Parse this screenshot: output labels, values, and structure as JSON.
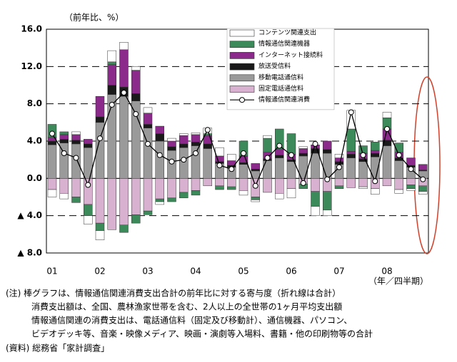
{
  "chart_data": {
    "type": "bar",
    "stacked": true,
    "y_label": "（前年比、%）",
    "x_label": "（年／四半期）",
    "categories": [
      "01",
      null,
      null,
      null,
      "02",
      null,
      null,
      null,
      "03",
      null,
      null,
      null,
      "04",
      null,
      null,
      null,
      "05",
      null,
      null,
      null,
      "06",
      null,
      null,
      null,
      "07",
      null,
      null,
      null,
      "08",
      null,
      null,
      null
    ],
    "ylim": [
      -8,
      16
    ],
    "yticks": [
      {
        "value": 16,
        "label": "16.0"
      },
      {
        "value": 12,
        "label": "12.0"
      },
      {
        "value": 8,
        "label": "8.0"
      },
      {
        "value": 4,
        "label": "4.0"
      },
      {
        "value": 0,
        "label": "0.0"
      },
      {
        "value": -4,
        "label": "▲ 4.0"
      },
      {
        "value": -8,
        "label": "▲ 8.0"
      }
    ],
    "grid": true,
    "series": [
      {
        "name": "コンテンツ関連支出",
        "color": "#ffffff",
        "values": [
          -0.8,
          -0.6,
          0.3,
          -0.9,
          -1.0,
          1.2,
          0.8,
          0.4,
          0.6,
          -0.3,
          0.3,
          0.2,
          0.2,
          0.6,
          0.9,
          0.7,
          -0.5,
          -0.2,
          0.3,
          -0.6,
          -1.0,
          0.2,
          -1.0,
          -0.6,
          0.4,
          2.0,
          -0.2,
          -0.6,
          0.6,
          -0.4,
          -0.2,
          -0.3
        ]
      },
      {
        "name": "情報通信関連機器",
        "color": "#3c8a5a",
        "values": [
          1.4,
          0.3,
          -0.6,
          -1.2,
          -0.8,
          0.3,
          -0.8,
          -0.9,
          -0.4,
          -0.3,
          -0.4,
          -0.6,
          -0.5,
          0.2,
          -0.4,
          -0.3,
          1.6,
          -0.3,
          1.5,
          2.2,
          2.2,
          -0.5,
          -1.6,
          -2.0,
          -0.3,
          2.4,
          0.8,
          0.9,
          1.2,
          1.0,
          -0.4,
          -0.6
        ]
      },
      {
        "name": "インターネット接続料",
        "color": "#8b2a8b",
        "values": [
          0.4,
          0.5,
          0.6,
          0.5,
          2.2,
          2.2,
          4.0,
          2.5,
          1.2,
          0.8,
          0.6,
          0.9,
          0.8,
          0.9,
          0.6,
          0.5,
          0.7,
          0.6,
          0.7,
          0.6,
          0.6,
          0.5,
          0.4,
          0.9,
          0.4,
          0.3,
          0.6,
          0.3,
          1.2,
          0.6,
          0.8,
          0.6
        ]
      },
      {
        "name": "放送受信料",
        "color": "#1a1a1a",
        "values": [
          0.4,
          0.4,
          0.4,
          0.4,
          0.6,
          1.0,
          1.0,
          0.8,
          0.4,
          0.8,
          0.4,
          0.4,
          0.4,
          0.5,
          0.2,
          0.2,
          0.2,
          0.2,
          0.2,
          0.3,
          0.2,
          0.3,
          0.5,
          0.4,
          0.3,
          0.4,
          0.3,
          0.4,
          0.6,
          0.3,
          0.2,
          0.1
        ]
      },
      {
        "name": "移動電話通信料",
        "color": "#9a9a9a",
        "values": [
          3.6,
          3.8,
          3.7,
          3.3,
          6.0,
          9.0,
          8.8,
          8.3,
          5.4,
          4.0,
          3.0,
          3.3,
          3.5,
          3.2,
          1.6,
          1.2,
          1.5,
          0.8,
          1.9,
          2.2,
          1.8,
          2.4,
          2.7,
          2.7,
          1.5,
          2.2,
          1.8,
          2.3,
          3.5,
          1.9,
          1.2,
          0.8
        ]
      },
      {
        "name": "固定電話通信料",
        "color": "#d8b0d0",
        "values": [
          -1.2,
          -1.6,
          -2.0,
          -2.8,
          -4.8,
          -5.5,
          -5.0,
          -3.9,
          -3.5,
          -2.2,
          -2.1,
          -1.5,
          -1.3,
          -0.8,
          -0.8,
          -0.9,
          -1.3,
          -2.0,
          -1.5,
          -1.6,
          -1.1,
          -0.6,
          -1.4,
          -1.4,
          -0.8,
          -1.0,
          -0.9,
          -1.1,
          -0.8,
          -1.2,
          -0.7,
          -0.8
        ]
      }
    ],
    "line": {
      "name": "情報通信関連消費",
      "color": "#000000",
      "values": [
        4.8,
        2.7,
        2.2,
        -0.7,
        4.3,
        7.9,
        9.2,
        6.9,
        3.7,
        2.5,
        1.8,
        2.0,
        2.7,
        5.2,
        1.4,
        1.0,
        2.7,
        -0.8,
        2.2,
        3.5,
        2.5,
        -0.5,
        3.7,
        -0.1,
        1.2,
        7.1,
        2.5,
        -0.3,
        5.3,
        2.5,
        1.0,
        -0.1
      ]
    }
  },
  "notes": [
    "(注) 棒グラフは、情報通信関連消費支出合計の前年比に対する寄与度（折れ線は合計）",
    "消費支出額は、全国、農林漁家世帯を含む、2人以上の全世帯の1ヶ月平均支出額",
    "情報通信関連の消費支出は、電話通信料（固定及び移動計）、通信機器、パソコン、",
    "ビデオデッキ等、音楽・映像メディア、映画・演劇等入場料、書籍・他の印刷物等の合計"
  ],
  "source": "(資料) 総務省「家計調査」"
}
